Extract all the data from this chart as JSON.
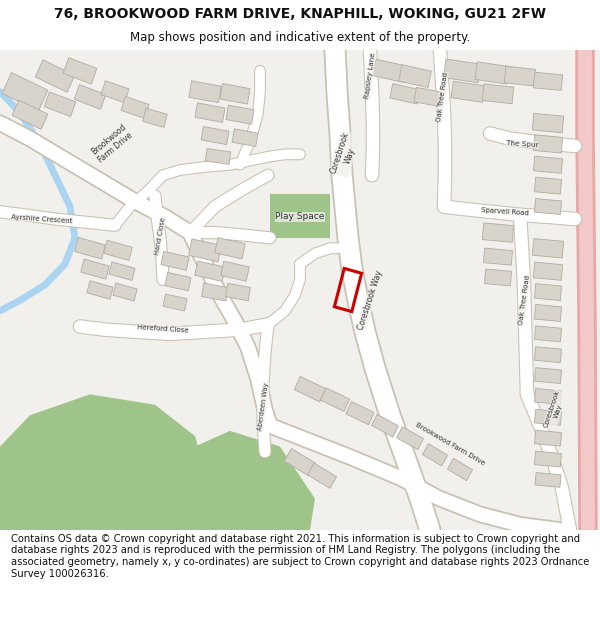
{
  "title_line1": "76, BROOKWOOD FARM DRIVE, KNAPHILL, WOKING, GU21 2FW",
  "title_line2": "Map shows position and indicative extent of the property.",
  "footer": "Contains OS data © Crown copyright and database right 2021. This information is subject to Crown copyright and database rights 2023 and is reproduced with the permission of HM Land Registry. The polygons (including the associated geometry, namely x, y co-ordinates) are subject to Crown copyright and database rights 2023 Ordnance Survey 100026316.",
  "map_bg": "#f2f0ec",
  "road_color": "#ffffff",
  "road_outline": "#c8c0b0",
  "building_color": "#d8d4cc",
  "building_outline": "#b0aca4",
  "green_color": "#9ec48a",
  "green_dark": "#7aaa64",
  "water_color": "#aad4f0",
  "red_outline": "#cc0000",
  "pink_road_fill": "#f2c8c8",
  "pink_road_edge": "#e8a8a8",
  "title_fontsize": 10,
  "subtitle_fontsize": 8.5,
  "footer_fontsize": 7.2,
  "label_fontsize": 5.5,
  "label_color": "#333333"
}
